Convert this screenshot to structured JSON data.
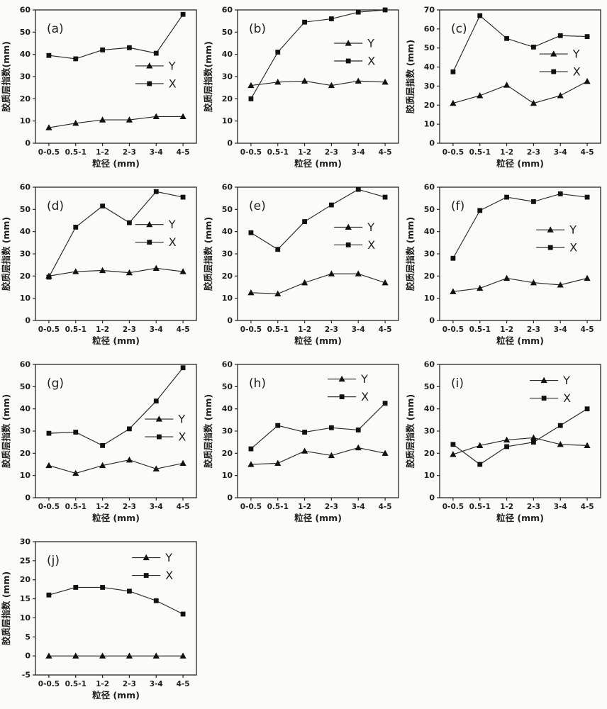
{
  "figure": {
    "background": "#fbfbf8",
    "ink": "#262626",
    "marker_color": "#111111"
  },
  "chart_data": [
    {
      "type": "line",
      "panel": "(a)",
      "xlabel": "粒径 (mm)",
      "ylabel": "胶质层指数(mm)",
      "categories": [
        "0-0.5",
        "0.5-1",
        "1-2",
        "2-3",
        "3-4",
        "4-5"
      ],
      "ylim": [
        0,
        60
      ],
      "yticks": [
        0,
        10,
        20,
        30,
        40,
        50,
        60
      ],
      "grid": false,
      "legend": [
        "Y",
        "X"
      ],
      "legend_pos": {
        "x": 0.62,
        "y": 0.42
      },
      "series": [
        {
          "name": "Y",
          "marker": "triangle",
          "values": [
            7,
            9,
            10.5,
            10.5,
            12,
            12
          ]
        },
        {
          "name": "X",
          "marker": "square",
          "values": [
            39.5,
            38,
            42,
            43,
            40.5,
            58
          ]
        }
      ]
    },
    {
      "type": "line",
      "panel": "(b)",
      "xlabel": "粒径 (mm)",
      "ylabel": "胶质层指数(mm)",
      "categories": [
        "0-0.5",
        "0.5-1",
        "1-2",
        "2-3",
        "3-4",
        "4-5"
      ],
      "ylim": [
        0,
        60
      ],
      "yticks": [
        0,
        10,
        20,
        30,
        40,
        50,
        60
      ],
      "grid": false,
      "legend": [
        "Y",
        "X"
      ],
      "legend_pos": {
        "x": 0.6,
        "y": 0.25
      },
      "series": [
        {
          "name": "Y",
          "marker": "triangle",
          "values": [
            26,
            27.5,
            28,
            26,
            28,
            27.5
          ]
        },
        {
          "name": "X",
          "marker": "square",
          "values": [
            20,
            41,
            54.5,
            56,
            59,
            60
          ]
        }
      ]
    },
    {
      "type": "line",
      "panel": "(c)",
      "xlabel": "粒径 (mm)",
      "ylabel": "胶质层指数 (mm)",
      "categories": [
        "0-0.5",
        "0.5-1",
        "1-2",
        "2-3",
        "3-4",
        "4-5"
      ],
      "ylim": [
        0,
        70
      ],
      "yticks": [
        0,
        10,
        20,
        30,
        40,
        50,
        60,
        70
      ],
      "grid": false,
      "legend": [
        "Y",
        "X"
      ],
      "legend_pos": {
        "x": 0.62,
        "y": 0.33
      },
      "series": [
        {
          "name": "Y",
          "marker": "triangle",
          "values": [
            21,
            25,
            30.5,
            21,
            25,
            32.5
          ]
        },
        {
          "name": "X",
          "marker": "square",
          "values": [
            37.5,
            67,
            55,
            50.5,
            56.5,
            56
          ]
        }
      ]
    },
    {
      "type": "line",
      "panel": "(d)",
      "xlabel": "粒径 (mm)",
      "ylabel": "胶质层指数 (mm)",
      "categories": [
        "0-0.5",
        "0.5-1",
        "1-2",
        "2-3",
        "3-4",
        "4-5"
      ],
      "ylim": [
        0,
        60
      ],
      "yticks": [
        0,
        10,
        20,
        30,
        40,
        50,
        60
      ],
      "grid": false,
      "legend": [
        "Y",
        "X"
      ],
      "legend_pos": {
        "x": 0.62,
        "y": 0.28
      },
      "series": [
        {
          "name": "Y",
          "marker": "triangle",
          "values": [
            20,
            22,
            22.5,
            21.5,
            23.5,
            22
          ]
        },
        {
          "name": "X",
          "marker": "square",
          "values": [
            19.5,
            42,
            51.5,
            44,
            58,
            55.5
          ]
        }
      ]
    },
    {
      "type": "line",
      "panel": "(e)",
      "xlabel": "粒径 (mm)",
      "ylabel": "胶质层指数 (mm)",
      "categories": [
        "0-0.5",
        "0.5-1",
        "1-2",
        "2-3",
        "3-4",
        "4-5"
      ],
      "ylim": [
        0,
        60
      ],
      "yticks": [
        0,
        10,
        20,
        30,
        40,
        50,
        60
      ],
      "grid": false,
      "legend": [
        "Y",
        "X"
      ],
      "legend_pos": {
        "x": 0.6,
        "y": 0.3
      },
      "series": [
        {
          "name": "Y",
          "marker": "triangle",
          "values": [
            12.5,
            12,
            17,
            21,
            21,
            17
          ]
        },
        {
          "name": "X",
          "marker": "square",
          "values": [
            39.5,
            32,
            44.5,
            52,
            59,
            55.5
          ]
        }
      ]
    },
    {
      "type": "line",
      "panel": "(f)",
      "xlabel": "粒径 (mm)",
      "ylabel": "胶质层指数 (mm)",
      "categories": [
        "0-0.5",
        "0.5-1",
        "1-2",
        "2-3",
        "3-4",
        "4-5"
      ],
      "ylim": [
        0,
        60
      ],
      "yticks": [
        0,
        10,
        20,
        30,
        40,
        50,
        60
      ],
      "grid": false,
      "legend": [
        "Y",
        "X"
      ],
      "legend_pos": {
        "x": 0.6,
        "y": 0.32
      },
      "series": [
        {
          "name": "Y",
          "marker": "triangle",
          "values": [
            13,
            14.5,
            19,
            17,
            16,
            19
          ]
        },
        {
          "name": "X",
          "marker": "square",
          "values": [
            28,
            49.5,
            55.5,
            53.5,
            57,
            55.5
          ]
        }
      ]
    },
    {
      "type": "line",
      "panel": "(g)",
      "xlabel": "粒径 (mm)",
      "ylabel": "胶质层指数 (mm)",
      "categories": [
        "0-0.5",
        "0.5-1",
        "1-2",
        "2-3",
        "3-4",
        "4-5"
      ],
      "ylim": [
        0,
        60
      ],
      "yticks": [
        0,
        10,
        20,
        30,
        40,
        50,
        60
      ],
      "grid": false,
      "legend": [
        "Y",
        "X"
      ],
      "legend_pos": {
        "x": 0.68,
        "y": 0.41
      },
      "series": [
        {
          "name": "Y",
          "marker": "triangle",
          "values": [
            14.5,
            11,
            14.5,
            17,
            13,
            15.5
          ]
        },
        {
          "name": "X",
          "marker": "square",
          "values": [
            29,
            29.5,
            23.5,
            31,
            43.5,
            58.5
          ]
        }
      ]
    },
    {
      "type": "line",
      "panel": "(h)",
      "xlabel": "粒径 (mm)",
      "ylabel": "胶质层指数 (mm)",
      "categories": [
        "0-0.5",
        "0.5-1",
        "1-2",
        "2-3",
        "3-4",
        "4-5"
      ],
      "ylim": [
        0,
        60
      ],
      "yticks": [
        0,
        10,
        20,
        30,
        40,
        50,
        60
      ],
      "grid": false,
      "legend": [
        "Y",
        "X"
      ],
      "legend_pos": {
        "x": 0.56,
        "y": 0.11
      },
      "series": [
        {
          "name": "Y",
          "marker": "triangle",
          "values": [
            15,
            15.5,
            21,
            19,
            22.5,
            20
          ]
        },
        {
          "name": "X",
          "marker": "square",
          "values": [
            22,
            32.5,
            29.5,
            31.5,
            30.5,
            42.5
          ]
        }
      ]
    },
    {
      "type": "line",
      "panel": "(i)",
      "xlabel": "粒径 (mm)",
      "ylabel": "胶质层指数 (mm)",
      "categories": [
        "0-0.5",
        "0.5-1",
        "1-2",
        "2-3",
        "3-4",
        "4-5"
      ],
      "ylim": [
        0,
        60
      ],
      "yticks": [
        0,
        10,
        20,
        30,
        40,
        50,
        60
      ],
      "grid": false,
      "legend": [
        "Y",
        "X"
      ],
      "legend_pos": {
        "x": 0.56,
        "y": 0.12
      },
      "series": [
        {
          "name": "Y",
          "marker": "triangle",
          "values": [
            19.5,
            23.5,
            26,
            27,
            24,
            23.5
          ]
        },
        {
          "name": "X",
          "marker": "square",
          "values": [
            24,
            15,
            23,
            25,
            32.5,
            40
          ]
        }
      ]
    },
    {
      "type": "line",
      "panel": "(j)",
      "xlabel": "粒径 (mm)",
      "ylabel": "胶质层指数 (mm)",
      "categories": [
        "0-0.5",
        "0.5-1",
        "1-2",
        "2-3",
        "3-4",
        "4-5"
      ],
      "ylim": [
        -5,
        30
      ],
      "yticks": [
        -5,
        0,
        5,
        10,
        15,
        20,
        25,
        30
      ],
      "grid": false,
      "legend": [
        "Y",
        "X"
      ],
      "legend_pos": {
        "x": 0.6,
        "y": 0.12
      },
      "series": [
        {
          "name": "Y",
          "marker": "triangle",
          "values": [
            0,
            0,
            0,
            0,
            0,
            0
          ]
        },
        {
          "name": "X",
          "marker": "square",
          "values": [
            16,
            18,
            18,
            17,
            14.5,
            11
          ]
        }
      ]
    }
  ]
}
